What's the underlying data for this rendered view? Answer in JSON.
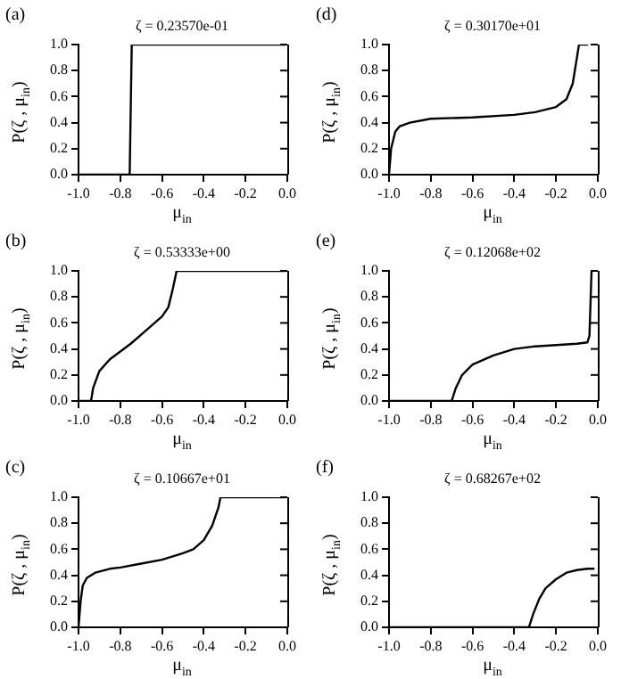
{
  "chart_data": [
    {
      "type": "line",
      "annotations": [
        "(a)"
      ],
      "title": "ζ = 0.23570e-01",
      "xlabel": "μ$_{in}$",
      "ylabel": "P(ζ , μ$_{in}$)",
      "xlim": [
        -1,
        0
      ],
      "ylim": [
        0,
        1
      ],
      "xticks": [
        {
          "value": -1,
          "label": "-1.0"
        },
        {
          "value": -0.8,
          "label": "-0.8"
        },
        {
          "value": -0.6,
          "label": "-0.6"
        },
        {
          "value": -0.4,
          "label": "-0.4"
        },
        {
          "value": -0.2,
          "label": "-0.2"
        },
        {
          "value": 0,
          "label": "0.0"
        }
      ],
      "yticks": [
        {
          "value": 0,
          "label": "0.0"
        },
        {
          "value": 0.2,
          "label": "0.2"
        },
        {
          "value": 0.4,
          "label": "0.4"
        },
        {
          "value": 0.6,
          "label": "0.6"
        },
        {
          "value": 0.8,
          "label": "0.8"
        },
        {
          "value": 1,
          "label": "1.0"
        }
      ],
      "grid": false,
      "legend": false,
      "marker": "none",
      "line_style": "solid",
      "series": [
        {
          "color": "#000000",
          "x": [
            -1,
            -0.755,
            -0.745,
            -0.01
          ],
          "values": [
            0,
            0,
            1,
            1
          ]
        }
      ]
    },
    {
      "type": "line",
      "annotations": [
        "(d)"
      ],
      "title": "ζ = 0.30170e+01",
      "xlabel": "μ$_{in}$",
      "ylabel": "P(ζ , μ$_{in}$)",
      "xlim": [
        -1,
        0
      ],
      "ylim": [
        0,
        1
      ],
      "xticks": [
        {
          "value": -1,
          "label": "-1.0"
        },
        {
          "value": -0.8,
          "label": "-0.8"
        },
        {
          "value": -0.6,
          "label": "-0.6"
        },
        {
          "value": -0.4,
          "label": "-0.4"
        },
        {
          "value": -0.2,
          "label": "-0.2"
        },
        {
          "value": 0,
          "label": "0.0"
        }
      ],
      "yticks": [
        {
          "value": 0,
          "label": "0.0"
        },
        {
          "value": 0.2,
          "label": "0.2"
        },
        {
          "value": 0.4,
          "label": "0.4"
        },
        {
          "value": 0.6,
          "label": "0.6"
        },
        {
          "value": 0.8,
          "label": "0.8"
        },
        {
          "value": 1,
          "label": "1.0"
        }
      ],
      "grid": false,
      "legend": false,
      "marker": "none",
      "line_style": "solid",
      "series": [
        {
          "color": "#000000",
          "x": [
            -1,
            -0.99,
            -0.97,
            -0.95,
            -0.9,
            -0.8,
            -0.6,
            -0.4,
            -0.3,
            -0.2,
            -0.15,
            -0.12,
            -0.1,
            -0.09,
            -0.05
          ],
          "values": [
            0,
            0.2,
            0.33,
            0.37,
            0.4,
            0.43,
            0.44,
            0.46,
            0.48,
            0.52,
            0.58,
            0.7,
            0.9,
            1,
            1
          ]
        }
      ]
    },
    {
      "type": "line",
      "annotations": [
        "(b)"
      ],
      "title": "ζ = 0.53333e+00",
      "xlabel": "μ$_{in}$",
      "ylabel": "P(ζ , μ$_{in}$)",
      "xlim": [
        -1,
        0
      ],
      "ylim": [
        0,
        1
      ],
      "xticks": [
        {
          "value": -1,
          "label": "-1.0"
        },
        {
          "value": -0.8,
          "label": "-0.8"
        },
        {
          "value": -0.6,
          "label": "-0.6"
        },
        {
          "value": -0.4,
          "label": "-0.4"
        },
        {
          "value": -0.2,
          "label": "-0.2"
        },
        {
          "value": 0,
          "label": "0.0"
        }
      ],
      "yticks": [
        {
          "value": 0,
          "label": "0.0"
        },
        {
          "value": 0.2,
          "label": "0.2"
        },
        {
          "value": 0.4,
          "label": "0.4"
        },
        {
          "value": 0.6,
          "label": "0.6"
        },
        {
          "value": 0.8,
          "label": "0.8"
        },
        {
          "value": 1,
          "label": "1.0"
        }
      ],
      "grid": false,
      "legend": false,
      "marker": "none",
      "line_style": "solid",
      "series": [
        {
          "color": "#000000",
          "x": [
            -1,
            -0.94,
            -0.93,
            -0.9,
            -0.85,
            -0.8,
            -0.75,
            -0.7,
            -0.65,
            -0.6,
            -0.57,
            -0.55,
            -0.53,
            -0.01
          ],
          "values": [
            0,
            0,
            0.1,
            0.23,
            0.32,
            0.38,
            0.44,
            0.51,
            0.58,
            0.65,
            0.72,
            0.85,
            1,
            1
          ]
        }
      ]
    },
    {
      "type": "line",
      "annotations": [
        "(e)"
      ],
      "title": "ζ = 0.12068e+02",
      "xlabel": "μ$_{in}$",
      "ylabel": "P(ζ , μ$_{in}$)",
      "xlim": [
        -1,
        0
      ],
      "ylim": [
        0,
        1
      ],
      "xticks": [
        {
          "value": -1,
          "label": "-1.0"
        },
        {
          "value": -0.8,
          "label": "-0.8"
        },
        {
          "value": -0.6,
          "label": "-0.6"
        },
        {
          "value": -0.4,
          "label": "-0.4"
        },
        {
          "value": -0.2,
          "label": "-0.2"
        },
        {
          "value": 0,
          "label": "0.0"
        }
      ],
      "yticks": [
        {
          "value": 0,
          "label": "0.0"
        },
        {
          "value": 0.2,
          "label": "0.2"
        },
        {
          "value": 0.4,
          "label": "0.4"
        },
        {
          "value": 0.6,
          "label": "0.6"
        },
        {
          "value": 0.8,
          "label": "0.8"
        },
        {
          "value": 1,
          "label": "1.0"
        }
      ],
      "grid": false,
      "legend": false,
      "marker": "none",
      "line_style": "solid",
      "series": [
        {
          "color": "#000000",
          "x": [
            -1,
            -0.7,
            -0.68,
            -0.65,
            -0.6,
            -0.5,
            -0.4,
            -0.3,
            -0.2,
            -0.1,
            -0.05,
            -0.04,
            -0.03
          ],
          "values": [
            0,
            0,
            0.1,
            0.2,
            0.28,
            0.35,
            0.4,
            0.42,
            0.43,
            0.44,
            0.45,
            0.5,
            1
          ]
        }
      ]
    },
    {
      "type": "line",
      "annotations": [
        "(c)"
      ],
      "title": "ζ = 0.10667e+01",
      "xlabel": "μ$_{in}$",
      "ylabel": "P(ζ , μ$_{in}$)",
      "xlim": [
        -1,
        0
      ],
      "ylim": [
        0,
        1
      ],
      "xticks": [
        {
          "value": -1,
          "label": "-1.0"
        },
        {
          "value": -0.8,
          "label": "-0.8"
        },
        {
          "value": -0.6,
          "label": "-0.6"
        },
        {
          "value": -0.4,
          "label": "-0.4"
        },
        {
          "value": -0.2,
          "label": "-0.2"
        },
        {
          "value": 0,
          "label": "0.0"
        }
      ],
      "yticks": [
        {
          "value": 0,
          "label": "0.0"
        },
        {
          "value": 0.2,
          "label": "0.2"
        },
        {
          "value": 0.4,
          "label": "0.4"
        },
        {
          "value": 0.6,
          "label": "0.6"
        },
        {
          "value": 0.8,
          "label": "0.8"
        },
        {
          "value": 1,
          "label": "1.0"
        }
      ],
      "grid": false,
      "legend": false,
      "marker": "none",
      "line_style": "solid",
      "series": [
        {
          "color": "#000000",
          "x": [
            -1,
            -0.99,
            -0.98,
            -0.96,
            -0.92,
            -0.85,
            -0.8,
            -0.7,
            -0.6,
            -0.5,
            -0.45,
            -0.4,
            -0.36,
            -0.33,
            -0.32,
            -0.01
          ],
          "values": [
            0,
            0.2,
            0.32,
            0.38,
            0.42,
            0.45,
            0.46,
            0.49,
            0.52,
            0.57,
            0.6,
            0.67,
            0.78,
            0.92,
            1,
            1
          ]
        }
      ]
    },
    {
      "type": "line",
      "annotations": [
        "(f)"
      ],
      "title": "ζ = 0.68267e+02",
      "xlabel": "μ$_{in}$",
      "ylabel": "P(ζ , μ$_{in}$)",
      "xlim": [
        -1,
        0
      ],
      "ylim": [
        0,
        1
      ],
      "xticks": [
        {
          "value": -1,
          "label": "-1.0"
        },
        {
          "value": -0.8,
          "label": "-0.8"
        },
        {
          "value": -0.6,
          "label": "-0.6"
        },
        {
          "value": -0.4,
          "label": "-0.4"
        },
        {
          "value": -0.2,
          "label": "-0.2"
        },
        {
          "value": 0,
          "label": "0.0"
        }
      ],
      "yticks": [
        {
          "value": 0,
          "label": "0.0"
        },
        {
          "value": 0.2,
          "label": "0.2"
        },
        {
          "value": 0.4,
          "label": "0.4"
        },
        {
          "value": 0.6,
          "label": "0.6"
        },
        {
          "value": 0.8,
          "label": "0.8"
        },
        {
          "value": 1,
          "label": "1.0"
        }
      ],
      "grid": false,
      "legend": false,
      "marker": "none",
      "line_style": "solid",
      "series": [
        {
          "color": "#000000",
          "x": [
            -1,
            -0.33,
            -0.31,
            -0.28,
            -0.25,
            -0.2,
            -0.15,
            -0.1,
            -0.05,
            -0.02
          ],
          "values": [
            0,
            0,
            0.1,
            0.22,
            0.3,
            0.37,
            0.42,
            0.44,
            0.45,
            0.45
          ]
        }
      ]
    }
  ]
}
